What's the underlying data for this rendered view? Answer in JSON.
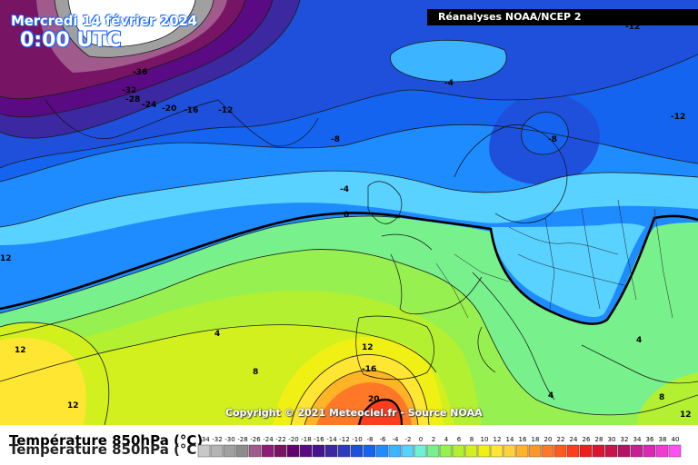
{
  "header": {
    "date": "Mercredi 14 février 2024",
    "time": "0:00 UTC",
    "source": "Réanalyses NOAA/NCEP 2"
  },
  "footer": {
    "copyright": "Copyright © 2021 Meteociel.fr - Source NOAA"
  },
  "legend": {
    "title": "Température 850hPa (°C)",
    "title_repeat": "Température 850hPa (°C)",
    "ticks": [
      "-34",
      "-32",
      "-30",
      "-28",
      "-26",
      "-24",
      "-22",
      "-20",
      "-18",
      "-16",
      "-14",
      "-12",
      "-10",
      "-8",
      "-6",
      "-4",
      "-2",
      "0",
      "2",
      "4",
      "6",
      "8",
      "10",
      "12",
      "14",
      "16",
      "18",
      "20",
      "22",
      "24",
      "26",
      "28",
      "30",
      "32",
      "34",
      "36",
      "38",
      "40"
    ],
    "colors": [
      "#c8c8c8",
      "#b4b4b4",
      "#a0a0a0",
      "#8c8c8c",
      "#a05a8c",
      "#8c1e78",
      "#781464",
      "#64006e",
      "#5a0a82",
      "#46148c",
      "#3c28a0",
      "#2d3cbe",
      "#1e50dc",
      "#1464f0",
      "#1e8cff",
      "#3cb4ff",
      "#5ad2ff",
      "#6ef0d2",
      "#78f08c",
      "#96f050",
      "#b4f032",
      "#d2f01e",
      "#f0f014",
      "#ffe632",
      "#ffd23c",
      "#ffb428",
      "#ff9628",
      "#ff7828",
      "#ff5a1e",
      "#ff3c1e",
      "#f01e1e",
      "#dc1432",
      "#c8144b",
      "#b41464",
      "#c81e96",
      "#dc28b4",
      "#f03cd2",
      "#ff50f0"
    ]
  },
  "isotherms": {
    "labels": [
      "-36",
      "-32",
      "-28",
      "-24",
      "-20",
      "-16",
      "-12",
      "-12",
      "-12",
      "-8",
      "-8",
      "-4",
      "-4",
      "0",
      "12",
      "12",
      "4",
      "8",
      "12",
      "-16",
      "20",
      "4",
      "4",
      "8",
      "12",
      "12"
    ]
  },
  "colors": {
    "title_outline": "#1a66ff",
    "zero_line": "#000000"
  }
}
